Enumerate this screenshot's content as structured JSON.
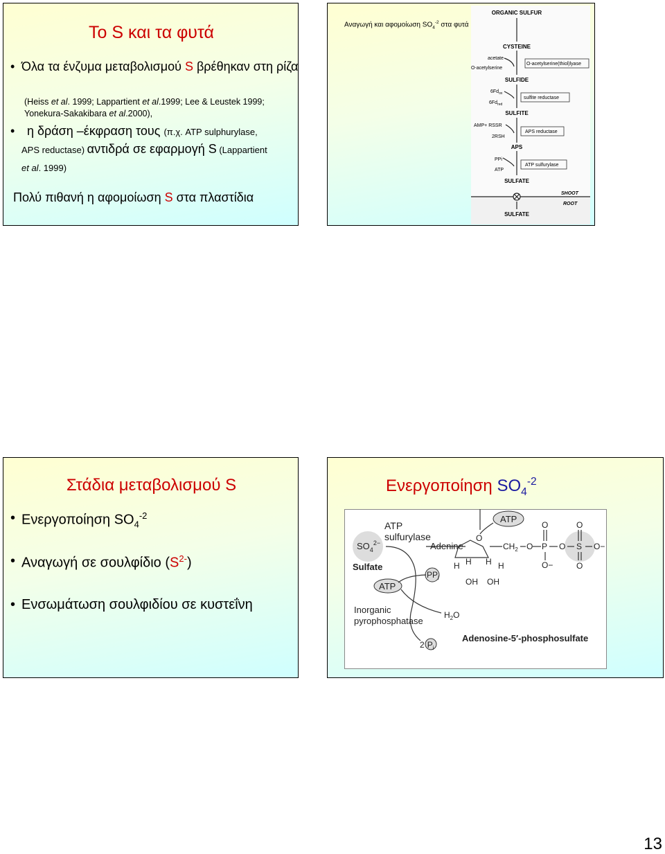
{
  "slides": [
    {
      "title": "Το S και τα φυτά",
      "bullet1": [
        "Όλα τα ένζυμα μεταβολισμού ",
        "S",
        " βρέθηκαν στη ρίζα"
      ],
      "refs": [
        "(Heiss ",
        "et al",
        ". 1999; Lappartient ",
        "et al",
        ".1999; Lee & Leustek 1999; Yonekura-Sakakibara ",
        "et al",
        ".2000),"
      ],
      "bullet2": [
        "η δράση –έκφραση τους ",
        "(π.χ. ATP sulphurylase, APS reductase) ",
        "αντιδρά σε εφαρμογή S",
        " (Lappartient ",
        "et al",
        ". 1999)"
      ],
      "conclusion": [
        "Πολύ πιθανή η αφομοίωση ",
        "S",
        " στα πλαστίδια"
      ]
    },
    {
      "title": [
        "Αναγωγή και αφομοίωση SO",
        "4",
        "-2",
        " στα φυτά"
      ],
      "labels": [
        "ORGANIC SULFUR",
        "CYSTEINE",
        "acetate",
        "O-acetylserine",
        "O-acetylserine(thiol)lyase",
        "SULFIDE",
        "6Fd",
        "ox",
        "6Fd",
        "red",
        "sulfite reductase",
        "SULFITE",
        "AMP+ RSSR",
        "2RSH",
        "APS reductase",
        "APS",
        "PPi",
        "ATP",
        "ATP sulfurylase",
        "SULFATE",
        "SHOOT",
        "ROOT",
        "SULFATE"
      ]
    },
    {
      "title": "Στάδια μεταβολισμού S",
      "bullet1": [
        "Ενεργοποίηση ",
        "SO",
        "4",
        "-2"
      ],
      "bullet2": [
        "Αναγωγή σε  σουλφίδιο (",
        "S",
        "2-",
        ")"
      ],
      "bullet3": "Ενσωμάτωση  σουλφιδίου σε κυστεΐνη"
    },
    {
      "title": [
        "Ενεργοποίηση  ",
        "SO",
        "4",
        "-2"
      ],
      "labels": [
        "SO",
        "4",
        "2−",
        "Sulfate",
        "ATP",
        "sulfurylase",
        "Adenine",
        "PP",
        "i",
        "ATP",
        "Inorganic",
        "pyrophosphatase",
        "H",
        "2",
        "O",
        "2",
        "P",
        "i",
        "ATP",
        "O",
        "CH",
        "2",
        "O",
        "P",
        "O",
        "O−",
        "O",
        "S",
        "O",
        "O",
        "O−",
        "H",
        "H",
        "H",
        "H",
        "OH",
        "OH",
        "Adenosine-5′-phosphosulfate"
      ]
    }
  ],
  "page_number": "13"
}
